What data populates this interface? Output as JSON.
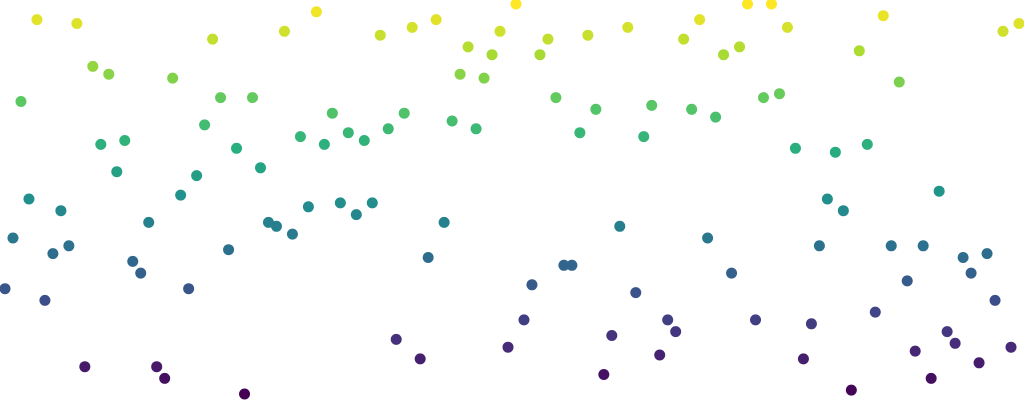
{
  "chart_data": {
    "type": "scatter",
    "title": "",
    "xlabel": "",
    "ylabel": "",
    "axes_visible": false,
    "grid": false,
    "legend": "none",
    "colormap": "viridis",
    "color_encodes": "y",
    "xlim": [
      0,
      127
    ],
    "ylim": [
      0,
      1
    ],
    "y": [
      0.27,
      0.4,
      0.75,
      0.5,
      0.96,
      0.24,
      0.36,
      0.47,
      0.38,
      0.95,
      0.07,
      0.84,
      0.64,
      0.82,
      0.57,
      0.65,
      0.34,
      0.31,
      0.44,
      0.07,
      0.04,
      0.81,
      0.51,
      0.27,
      0.56,
      0.69,
      0.91,
      0.76,
      0.37,
      0.63,
      0.0,
      0.76,
      0.58,
      0.44,
      0.43,
      0.93,
      0.41,
      0.66,
      0.48,
      0.98,
      0.64,
      0.72,
      0.49,
      0.67,
      0.46,
      0.65,
      0.49,
      0.92,
      0.68,
      0.14,
      0.72,
      0.94,
      0.09,
      0.35,
      0.96,
      0.44,
      0.7,
      0.82,
      0.89,
      0.68,
      0.81,
      0.87,
      0.93,
      0.12,
      1.0,
      0.19,
      0.28,
      0.87,
      0.91,
      0.76,
      0.33,
      0.33,
      0.67,
      0.92,
      0.73,
      0.05,
      0.15,
      0.43,
      0.94,
      0.26,
      0.66,
      0.74,
      0.1,
      0.19,
      0.16,
      0.91,
      0.73,
      0.96,
      0.4,
      0.71,
      0.87,
      0.31,
      0.89,
      1.0,
      0.19,
      0.76,
      1.0,
      0.77,
      0.94,
      0.63,
      0.09,
      0.18,
      0.38,
      0.5,
      0.62,
      0.47,
      0.01,
      0.88,
      0.64,
      0.21,
      0.97,
      0.38,
      0.8,
      0.29,
      0.11,
      0.38,
      0.04,
      0.52,
      0.16,
      0.13,
      0.35,
      0.31,
      0.08,
      0.36,
      0.24,
      0.93,
      0.12,
      0.95
    ]
  }
}
